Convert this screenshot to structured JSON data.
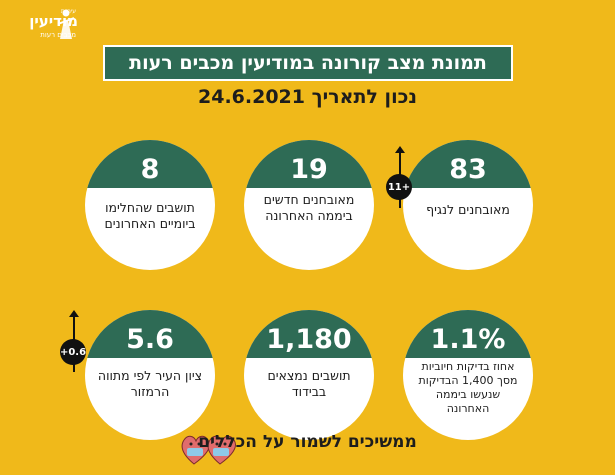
{
  "logo": {
    "top_line": "עיריית",
    "name": "מודיעין",
    "sub": "מכבים רעות"
  },
  "title": "תמונת מצב קורונה במודיעין מכבים רעות",
  "date_line": "נכון לתאריך 24.6.2021",
  "stats": [
    {
      "value": "83",
      "label": "מאובחנים לנגיף"
    },
    {
      "value": "19",
      "label": "מאובחנים חדשים ביממה האחרונה"
    },
    {
      "value": "8",
      "label": "תושבים שהחלימו ביומיים האחרונים"
    },
    {
      "value": "1.1%",
      "label": "אחוז בדיקות חיוביות מסך 1,400 הבדיקות שנעשו ביממה האחרונה"
    },
    {
      "value": "1,180",
      "label": "תושבים נמצאים בבידוד"
    },
    {
      "value": "5.6",
      "label": "ציון העיר לפי מתווה הרמזור"
    }
  ],
  "badges": {
    "diagnosed_change": "11+",
    "score_change": "+0.6"
  },
  "footer": "ממשיכים לשמור על הכללים",
  "colors": {
    "background": "#F0B91A",
    "accent": "#2E6B55"
  },
  "icons": [
    "trend-up-arrow-icon",
    "masked-hearts-icon",
    "logo-figure-icon"
  ]
}
